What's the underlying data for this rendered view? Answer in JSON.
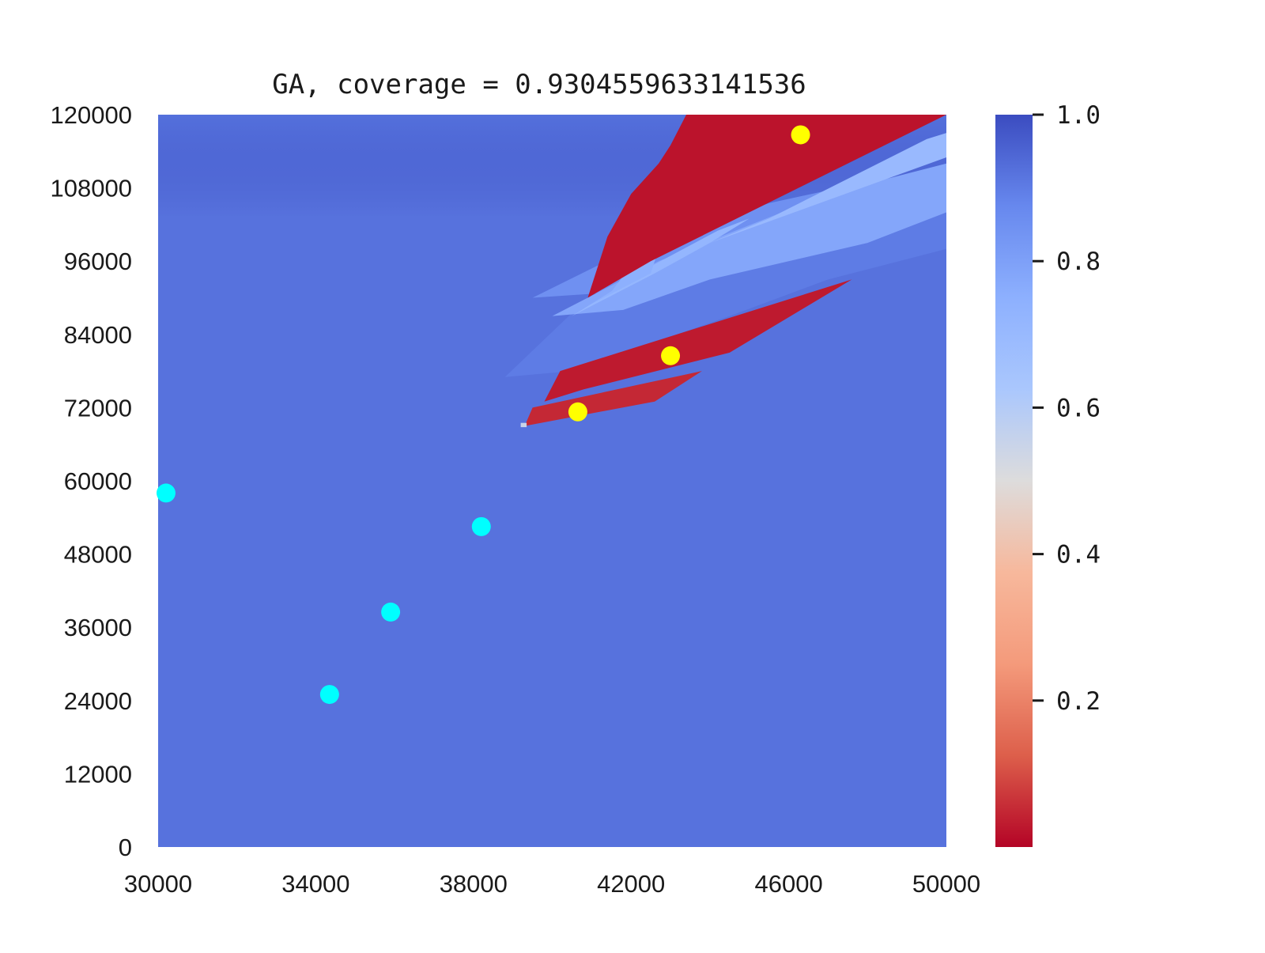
{
  "chart_data": {
    "type": "heatmap",
    "title": "GA, coverage = 0.9304559633141536",
    "xlabel": "",
    "ylabel": "",
    "xlim": [
      30000,
      50000
    ],
    "ylim": [
      0,
      120000
    ],
    "x_ticks": [
      "30000",
      "34000",
      "38000",
      "42000",
      "46000",
      "50000"
    ],
    "y_ticks": [
      "0",
      "12000",
      "24000",
      "36000",
      "48000",
      "60000",
      "72000",
      "84000",
      "96000",
      "108000",
      "120000"
    ],
    "colorbar": {
      "range": [
        0,
        1
      ],
      "ticks": [
        "0.2",
        "0.4",
        "0.6",
        "0.8",
        "1.0"
      ],
      "colormap": [
        "#b40426",
        "#dd5f4b",
        "#f49a7b",
        "#f7b89c",
        "#dddcdc",
        "#aac7fd",
        "#8db0fe",
        "#6788ee",
        "#3b4cc0"
      ]
    },
    "background_value": 0.92,
    "regions": [
      {
        "value": 0.9,
        "polygon": [
          [
            38800,
            77000
          ],
          [
            42200,
            98000
          ],
          [
            43800,
            98000
          ],
          [
            44800,
            103000
          ],
          [
            45500,
            105500
          ],
          [
            48000,
            107000
          ],
          [
            50000,
            107000
          ],
          [
            50000,
            98000
          ],
          [
            47000,
            93000
          ],
          [
            44500,
            87000
          ],
          [
            40500,
            78000
          ]
        ]
      },
      {
        "value": 0.85,
        "polygon": [
          [
            39500,
            90000
          ],
          [
            42000,
            98000
          ],
          [
            45500,
            105500
          ],
          [
            48000,
            109000
          ],
          [
            50000,
            111000
          ],
          [
            50000,
            104000
          ],
          [
            46000,
            97000
          ],
          [
            43000,
            91500
          ]
        ]
      },
      {
        "value": 0.78,
        "polygon": [
          [
            40000,
            87000
          ],
          [
            42700,
            96000
          ],
          [
            47000,
            107000
          ],
          [
            50000,
            112000
          ],
          [
            50000,
            104000
          ],
          [
            48000,
            99000
          ],
          [
            44000,
            93000
          ],
          [
            41800,
            88000
          ]
        ]
      },
      {
        "value": 0.72,
        "polygon": [
          [
            40500,
            87000
          ],
          [
            42600,
            95500
          ],
          [
            44200,
            101000
          ],
          [
            45000,
            103000
          ],
          [
            44000,
            99000
          ],
          [
            42600,
            94000
          ]
        ]
      },
      {
        "value": 0.7,
        "polygon": [
          [
            42500,
            95000
          ],
          [
            45500,
            103000
          ],
          [
            49500,
            116000
          ],
          [
            50000,
            117000
          ],
          [
            50000,
            113000
          ],
          [
            47000,
            106000
          ],
          [
            44000,
            99000
          ]
        ]
      },
      {
        "value": 0.62,
        "polygon": [
          [
            43000,
            113000
          ],
          [
            44500,
            117000
          ],
          [
            45200,
            120000
          ],
          [
            45900,
            120000
          ],
          [
            45500,
            117000
          ],
          [
            44800,
            114000
          ]
        ]
      },
      {
        "value": 0.75,
        "polygon": [
          [
            41000,
            89000
          ],
          [
            42500,
            94000
          ],
          [
            42800,
            100000
          ],
          [
            43400,
            107000
          ],
          [
            44200,
            113000
          ],
          [
            43600,
            110000
          ],
          [
            42800,
            104000
          ],
          [
            42200,
            97000
          ],
          [
            41500,
            91000
          ]
        ]
      },
      {
        "value": 0.02,
        "polygon": [
          [
            40900,
            90000
          ],
          [
            42500,
            96000
          ],
          [
            50000,
            120000
          ],
          [
            43400,
            120000
          ],
          [
            43000,
            115000
          ],
          [
            42700,
            112000
          ],
          [
            42000,
            107000
          ],
          [
            41400,
            100000
          ]
        ]
      },
      {
        "value": 0.03,
        "polygon": [
          [
            39800,
            73000
          ],
          [
            40200,
            78000
          ],
          [
            47600,
            93000
          ],
          [
            44500,
            81000
          ],
          [
            40800,
            75000
          ]
        ]
      },
      {
        "value": 0.05,
        "polygon": [
          [
            39300,
            69000
          ],
          [
            39500,
            72000
          ],
          [
            43800,
            78000
          ],
          [
            42600,
            73000
          ]
        ]
      },
      {
        "value": 0.55,
        "polygon": [
          [
            39200,
            68800
          ],
          [
            39350,
            68800
          ],
          [
            39350,
            69500
          ],
          [
            39200,
            69500
          ]
        ]
      }
    ],
    "markers": [
      {
        "x": 30200,
        "y": 58000,
        "color": "#00ffff"
      },
      {
        "x": 34350,
        "y": 25000,
        "color": "#00ffff"
      },
      {
        "x": 35900,
        "y": 38500,
        "color": "#00ffff"
      },
      {
        "x": 38200,
        "y": 52500,
        "color": "#00ffff"
      },
      {
        "x": 40650,
        "y": 71300,
        "color": "#ffff00"
      },
      {
        "x": 43000,
        "y": 80500,
        "color": "#ffff00"
      },
      {
        "x": 46300,
        "y": 116700,
        "color": "#ffff00"
      }
    ]
  }
}
